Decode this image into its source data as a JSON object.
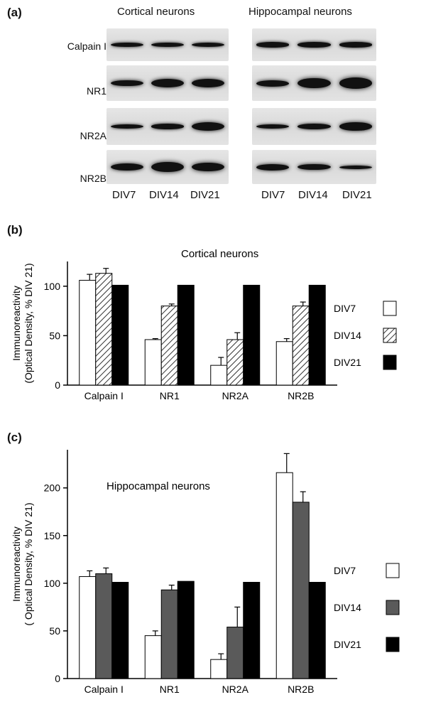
{
  "panel_a": {
    "letter": "(a)",
    "left_title": "Cortical neurons",
    "right_title": "Hippocampal neurons",
    "rows": [
      "Calpain I",
      "NR1",
      "NR2A",
      "NR2B"
    ],
    "lanes": [
      "DIV7",
      "DIV14",
      "DIV21"
    ]
  },
  "panel_b": {
    "letter": "(b)"
  },
  "panel_c": {
    "letter": "(c)"
  },
  "colors": {
    "div7": "#ffffff",
    "div14_fill": "#ffffff",
    "div14_hatch": "#333333",
    "div14_solid": "#5a5a5a",
    "div21": "#000000",
    "blot_bg": "#d9d9d9",
    "band": "#111111"
  },
  "chart_data": [
    {
      "type": "bar",
      "title": "Cortical neurons",
      "xlabel": "",
      "ylabel": "Immunoreactivity (Optical Density, % DIV 21)",
      "ylabel_lines": [
        "Immunoreactivity",
        "(Optical Density, % DIV 21)"
      ],
      "ylim": [
        0,
        125
      ],
      "yticks": [
        0,
        50,
        100
      ],
      "categories": [
        "Calpain I",
        "NR1",
        "NR2A",
        "NR2B"
      ],
      "series": [
        {
          "name": "DIV7",
          "values": [
            106,
            46,
            20,
            44
          ],
          "errors": [
            6,
            1,
            8,
            3
          ]
        },
        {
          "name": "DIV14",
          "values": [
            113,
            80,
            46,
            80
          ],
          "errors": [
            5,
            2,
            7,
            4
          ]
        },
        {
          "name": "DIV21",
          "values": [
            101,
            101,
            101,
            101
          ],
          "errors": [
            0,
            0,
            0,
            0
          ]
        }
      ],
      "legend": "right",
      "grid": false
    },
    {
      "type": "bar",
      "title": "Hippocampal neurons",
      "xlabel": "",
      "ylabel": "Immunoreactivity ( Optical Density, % DIV 21)",
      "ylabel_lines": [
        "Immunoreactivity",
        "( Optical Density, % DIV 21)"
      ],
      "ylim": [
        0,
        240
      ],
      "yticks": [
        0,
        50,
        100,
        150,
        200
      ],
      "categories": [
        "Calpain I",
        "NR1",
        "NR2A",
        "NR2B"
      ],
      "series": [
        {
          "name": "DIV7",
          "values": [
            107,
            45,
            20,
            216
          ],
          "errors": [
            6,
            5,
            6,
            20
          ]
        },
        {
          "name": "DIV14",
          "values": [
            110,
            93,
            54,
            185
          ],
          "errors": [
            6,
            5,
            21,
            11
          ]
        },
        {
          "name": "DIV21",
          "values": [
            101,
            102,
            101,
            101
          ],
          "errors": [
            0,
            0,
            0,
            0
          ]
        }
      ],
      "legend": "right",
      "grid": false
    }
  ]
}
